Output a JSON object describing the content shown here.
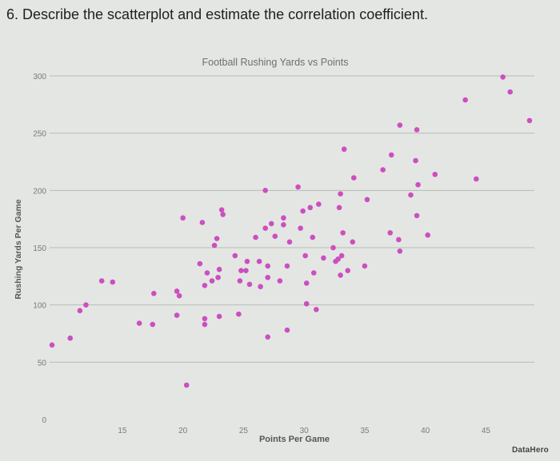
{
  "question": "6. Describe the scatterplot and estimate the correlation coefficient.",
  "brand": "DataHero",
  "colors": {
    "point": "#cc4fc0",
    "grid": "#b9bdb6",
    "axis_text": "#7a7a7a",
    "background": "#e4e6e3"
  },
  "chart_data": {
    "type": "scatter",
    "title": "Football Rushing Yards vs Points",
    "xlabel": "Points Per Game",
    "ylabel": "Rushing Yards Per Game",
    "xlim": [
      9,
      49
    ],
    "ylim": [
      0,
      300
    ],
    "x_ticks": [
      15,
      20,
      25,
      30,
      35,
      40,
      45
    ],
    "y_ticks": [
      0,
      50,
      100,
      150,
      200,
      250,
      300
    ],
    "grid": "horizontal",
    "points": [
      {
        "x": 9.2,
        "y": 65
      },
      {
        "x": 10.7,
        "y": 71
      },
      {
        "x": 11.5,
        "y": 95
      },
      {
        "x": 12.0,
        "y": 100
      },
      {
        "x": 13.3,
        "y": 121
      },
      {
        "x": 14.2,
        "y": 120
      },
      {
        "x": 16.4,
        "y": 84
      },
      {
        "x": 17.5,
        "y": 83
      },
      {
        "x": 17.6,
        "y": 110
      },
      {
        "x": 19.5,
        "y": 112
      },
      {
        "x": 19.5,
        "y": 91
      },
      {
        "x": 19.7,
        "y": 108
      },
      {
        "x": 20.0,
        "y": 176
      },
      {
        "x": 20.3,
        "y": 30
      },
      {
        "x": 21.4,
        "y": 136
      },
      {
        "x": 21.6,
        "y": 172
      },
      {
        "x": 21.8,
        "y": 88
      },
      {
        "x": 21.8,
        "y": 83
      },
      {
        "x": 21.8,
        "y": 117
      },
      {
        "x": 22.0,
        "y": 128
      },
      {
        "x": 22.4,
        "y": 121
      },
      {
        "x": 22.6,
        "y": 152
      },
      {
        "x": 22.8,
        "y": 158
      },
      {
        "x": 22.9,
        "y": 124
      },
      {
        "x": 23.0,
        "y": 90
      },
      {
        "x": 23.0,
        "y": 131
      },
      {
        "x": 23.2,
        "y": 183
      },
      {
        "x": 23.3,
        "y": 179
      },
      {
        "x": 24.3,
        "y": 143
      },
      {
        "x": 24.6,
        "y": 92
      },
      {
        "x": 24.7,
        "y": 121
      },
      {
        "x": 24.8,
        "y": 130
      },
      {
        "x": 25.2,
        "y": 130
      },
      {
        "x": 25.3,
        "y": 138
      },
      {
        "x": 25.5,
        "y": 118
      },
      {
        "x": 26.0,
        "y": 159
      },
      {
        "x": 26.3,
        "y": 138
      },
      {
        "x": 26.4,
        "y": 116
      },
      {
        "x": 26.8,
        "y": 167
      },
      {
        "x": 26.8,
        "y": 200
      },
      {
        "x": 27.0,
        "y": 72
      },
      {
        "x": 27.0,
        "y": 134
      },
      {
        "x": 27.0,
        "y": 124
      },
      {
        "x": 27.3,
        "y": 171
      },
      {
        "x": 27.6,
        "y": 160
      },
      {
        "x": 28.0,
        "y": 121
      },
      {
        "x": 28.3,
        "y": 176
      },
      {
        "x": 28.3,
        "y": 170
      },
      {
        "x": 28.6,
        "y": 78
      },
      {
        "x": 28.6,
        "y": 134
      },
      {
        "x": 28.8,
        "y": 155
      },
      {
        "x": 29.5,
        "y": 203
      },
      {
        "x": 29.7,
        "y": 167
      },
      {
        "x": 29.9,
        "y": 182
      },
      {
        "x": 30.1,
        "y": 143
      },
      {
        "x": 30.2,
        "y": 119
      },
      {
        "x": 30.2,
        "y": 101
      },
      {
        "x": 30.5,
        "y": 185
      },
      {
        "x": 30.7,
        "y": 159
      },
      {
        "x": 30.8,
        "y": 128
      },
      {
        "x": 31.0,
        "y": 96
      },
      {
        "x": 31.2,
        "y": 188
      },
      {
        "x": 31.6,
        "y": 141
      },
      {
        "x": 32.4,
        "y": 150
      },
      {
        "x": 32.6,
        "y": 138
      },
      {
        "x": 32.8,
        "y": 140
      },
      {
        "x": 32.9,
        "y": 185
      },
      {
        "x": 33.0,
        "y": 197
      },
      {
        "x": 33.0,
        "y": 126
      },
      {
        "x": 33.1,
        "y": 143
      },
      {
        "x": 33.2,
        "y": 163
      },
      {
        "x": 33.3,
        "y": 236
      },
      {
        "x": 33.6,
        "y": 130
      },
      {
        "x": 34.0,
        "y": 155
      },
      {
        "x": 34.1,
        "y": 211
      },
      {
        "x": 35.0,
        "y": 134
      },
      {
        "x": 35.2,
        "y": 192
      },
      {
        "x": 36.5,
        "y": 218
      },
      {
        "x": 37.1,
        "y": 163
      },
      {
        "x": 37.2,
        "y": 231
      },
      {
        "x": 37.8,
        "y": 157
      },
      {
        "x": 37.9,
        "y": 147
      },
      {
        "x": 37.9,
        "y": 257
      },
      {
        "x": 38.8,
        "y": 196
      },
      {
        "x": 39.2,
        "y": 226
      },
      {
        "x": 39.3,
        "y": 253
      },
      {
        "x": 39.3,
        "y": 178
      },
      {
        "x": 39.4,
        "y": 205
      },
      {
        "x": 40.2,
        "y": 161
      },
      {
        "x": 40.8,
        "y": 214
      },
      {
        "x": 43.3,
        "y": 279
      },
      {
        "x": 44.2,
        "y": 210
      },
      {
        "x": 46.4,
        "y": 299
      },
      {
        "x": 47.0,
        "y": 286
      },
      {
        "x": 48.6,
        "y": 261
      }
    ]
  }
}
